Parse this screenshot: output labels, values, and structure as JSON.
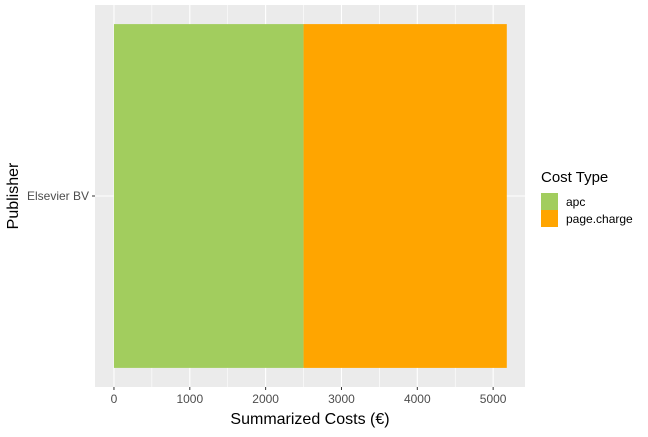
{
  "chart_data": {
    "type": "bar",
    "orientation": "horizontal",
    "stacked": true,
    "categories": [
      "Elsevier BV"
    ],
    "series": [
      {
        "name": "apc",
        "values": [
          2500
        ],
        "color": "#a2cd5e"
      },
      {
        "name": "page.charge",
        "values": [
          2680
        ],
        "color": "#ffa500"
      }
    ],
    "xlabel": "Summarized Costs (€)",
    "ylabel": "Publisher",
    "xlim": [
      -250,
      5420
    ],
    "xticks": [
      0,
      1000,
      2000,
      3000,
      4000,
      5000
    ],
    "xtick_labels": [
      "0",
      "1000",
      "2000",
      "3000",
      "4000",
      "5000"
    ],
    "grid": true,
    "legend": {
      "title": "Cost Type",
      "position": "right"
    }
  }
}
